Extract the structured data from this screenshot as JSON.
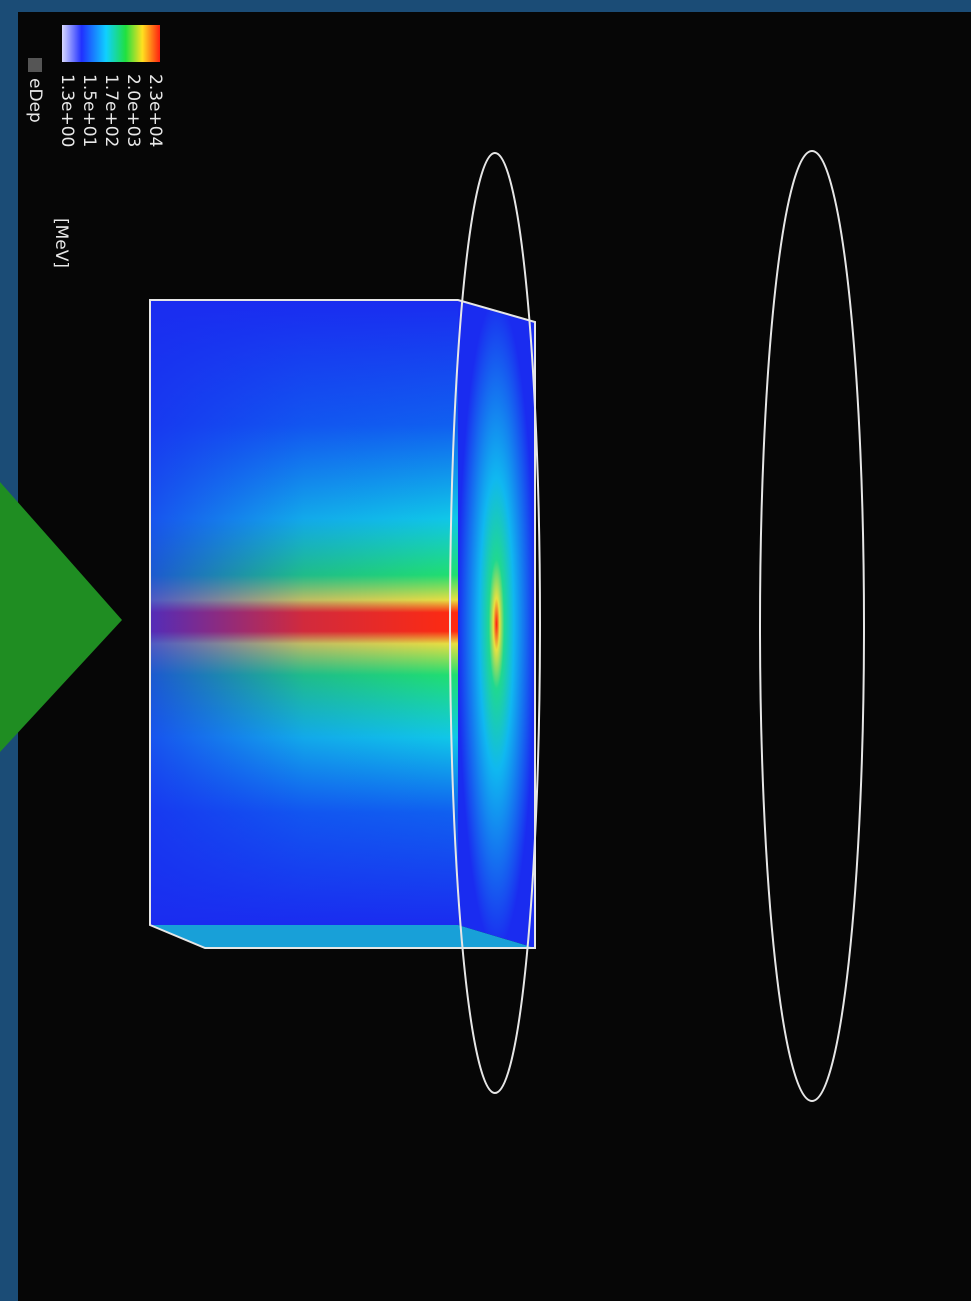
{
  "legend": {
    "ticks": [
      "2.3e+04",
      "2.0e+03",
      "1.7e+02",
      "1.5e+01",
      "1.3e+00"
    ],
    "quantity": "eDep",
    "unit": "[MeV]"
  }
}
